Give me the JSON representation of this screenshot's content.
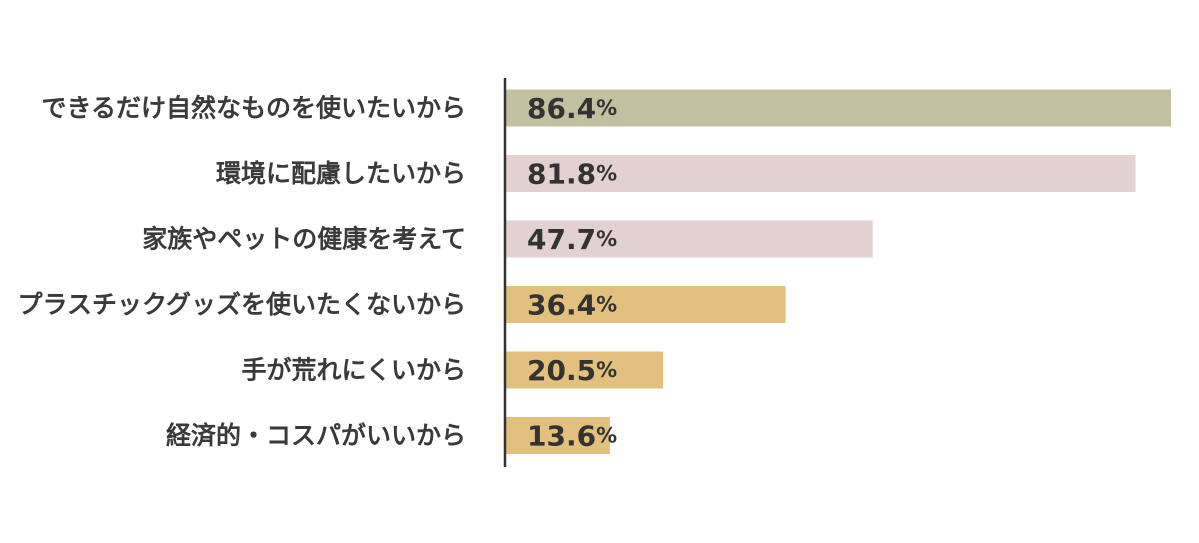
{
  "chart_data": {
    "type": "bar",
    "orientation": "horizontal",
    "unit": "%",
    "categories": [
      "できるだけ自然なものを使いたいから",
      "環境に配慮したいから",
      "家族やペットの健康を考えて",
      "プラスチックグッズを使いたくないから",
      "手が荒れにくいから",
      "経済的・コスパがいいから"
    ],
    "values": [
      86.4,
      81.8,
      47.7,
      36.4,
      20.5,
      13.6
    ],
    "value_labels": [
      "86.4",
      "81.8",
      "47.7",
      "36.4",
      "20.5",
      "13.6"
    ],
    "bar_colors": [
      "#c1c19f",
      "#e2d1d0",
      "#e2d1d0",
      "#e2c07e",
      "#e2c07e",
      "#e2c07e"
    ],
    "xlim": [
      0,
      86.4
    ],
    "grid": false,
    "legend": "none"
  }
}
